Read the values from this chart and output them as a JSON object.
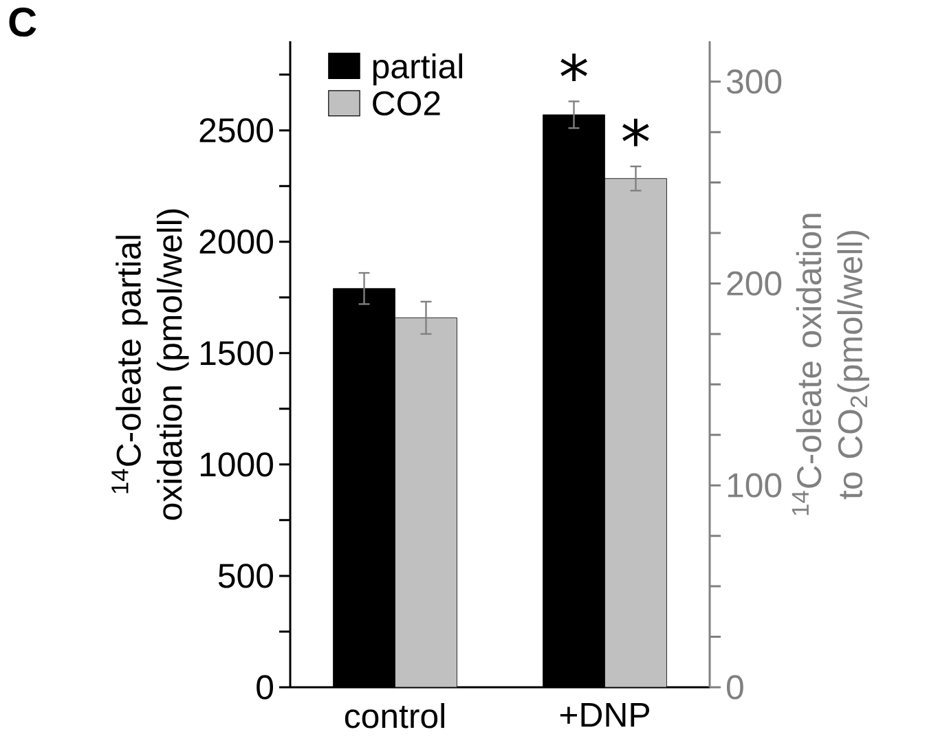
{
  "chart_data": {
    "type": "bar",
    "categories": [
      "control",
      "+DNP"
    ],
    "series": [
      {
        "name": "partial",
        "color": "#000000",
        "values": [
          1790,
          2570
        ],
        "errors": [
          70,
          60
        ]
      },
      {
        "name": "CO2",
        "color": "#c0c0c0",
        "values": [
          183,
          252
        ],
        "errors": [
          8,
          6
        ],
        "axis": "y2"
      }
    ],
    "ylabel": "$^{14}$C-oleate partial oxidation (pmol/well)",
    "y2label": "$^{14}$C-oleate oxidation to CO$_{2}$(pmol/well)",
    "ylim": [
      0,
      2900
    ],
    "yticks": [
      0,
      {
        "value": 250,
        "label": null
      },
      500,
      {
        "value": 750,
        "label": null
      },
      1000,
      {
        "value": 1250,
        "label": null
      },
      1500,
      {
        "value": 1750,
        "label": null
      },
      2000,
      {
        "value": 2250,
        "label": null
      },
      2500,
      {
        "value": 2750,
        "label": null
      }
    ],
    "y2lim": [
      0,
      320
    ],
    "y2ticks": [
      0,
      {
        "value": 25,
        "label": null
      },
      {
        "value": 50,
        "label": null
      },
      {
        "value": 75,
        "label": null
      },
      100,
      {
        "value": 125,
        "label": null
      },
      {
        "value": 150,
        "label": null
      },
      {
        "value": 175,
        "label": null
      },
      200,
      {
        "value": 225,
        "label": null
      },
      {
        "value": 250,
        "label": null
      },
      {
        "value": 275,
        "label": null
      },
      300
    ],
    "annotations": [
      "C",
      "*",
      "*"
    ],
    "legend": "top left",
    "grid": false
  }
}
